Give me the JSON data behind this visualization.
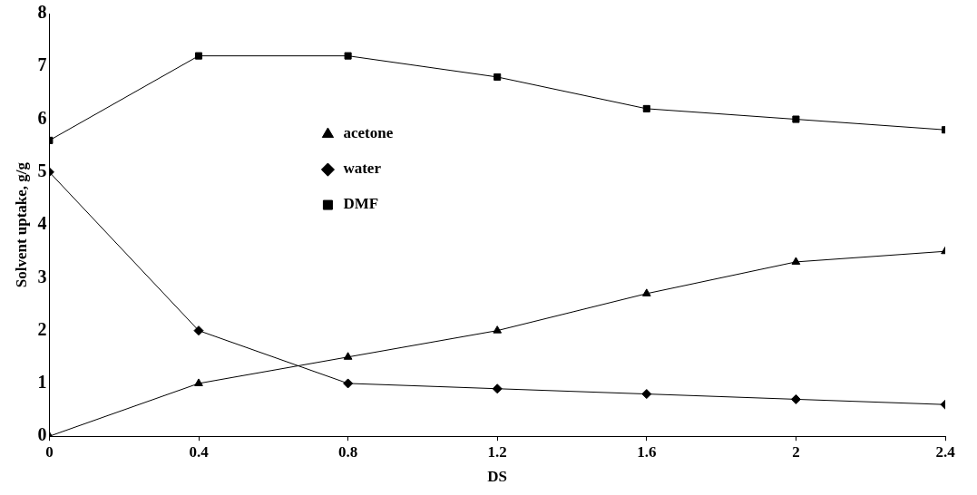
{
  "chart_data": {
    "type": "line",
    "xlabel": "DS",
    "ylabel": "Solvent uptake, g/g",
    "x": [
      0,
      0.4,
      0.8,
      1.2,
      1.6,
      2,
      2.4
    ],
    "series": [
      {
        "name": "acetone",
        "color": "#000000",
        "marker": "triangle",
        "values": [
          0,
          1,
          1.5,
          2,
          2.7,
          3.3,
          3.5
        ]
      },
      {
        "name": "water",
        "color": "#000000",
        "marker": "diamond",
        "values": [
          5,
          2,
          1,
          0.9,
          0.8,
          0.7,
          0.6
        ]
      },
      {
        "name": "DMF",
        "color": "#000000",
        "marker": "square",
        "values": [
          5.6,
          7.2,
          7.2,
          6.8,
          6.2,
          6,
          5.8
        ]
      }
    ],
    "xlim": [
      0,
      2.4
    ],
    "xticks": [
      0,
      0.4,
      0.8,
      1.2,
      1.6,
      2,
      2.4
    ],
    "ylim": [
      0,
      8
    ],
    "yticks": [
      0,
      1,
      2,
      3,
      4,
      5,
      6,
      7,
      8
    ],
    "grid": false,
    "legend": "top left",
    "line_style": "solid"
  }
}
